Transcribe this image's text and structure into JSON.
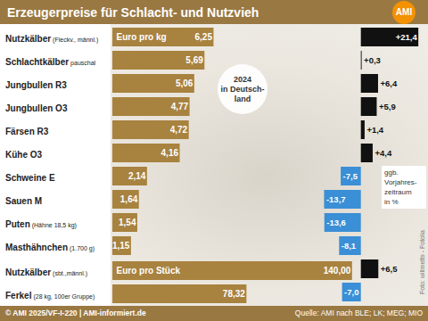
{
  "title": "Erzeugerpreise für Schlacht- und Nutzvieh",
  "logo": "AMI",
  "badge": [
    "2024",
    "in Deutsch-",
    "land"
  ],
  "footer_left": "© AMI 2025/VF-I-220 | AMI-informiert.de",
  "footer_right": "Quelle: AMI nach BLE; LK; MEG; MIO",
  "photo_credit": "Foto: willmetts - Fotolia",
  "chart_data": [
    {
      "type": "bar",
      "orientation": "horizontal",
      "title": "Euro pro kg",
      "categories": [
        "Nutzkälber",
        "Schlachtkälber",
        "Jungbullen R3",
        "Jungbullen O3",
        "Färsen R3",
        "Kühe O3",
        "Schweine E",
        "Sauen M",
        "Puten",
        "Masthähnchen"
      ],
      "category_notes": [
        "(Fleckv., männl.)",
        "pauschal",
        null,
        null,
        null,
        null,
        null,
        null,
        "(Hähne 18,5 kg)",
        "(1.700 g)"
      ],
      "values": [
        6.25,
        5.69,
        5.06,
        4.77,
        4.72,
        4.16,
        2.14,
        1.64,
        1.54,
        1.15
      ],
      "value_labels": [
        "6,25",
        "5,69",
        "5,06",
        "4,77",
        "4,72",
        "4,16",
        "2,14",
        "1,64",
        "1,54",
        "1,15"
      ],
      "color": "#a8823f",
      "xlim": [
        0,
        6.5
      ],
      "data_labels": true,
      "tick_labels": "y"
    },
    {
      "type": "bar",
      "orientation": "horizontal",
      "title": "Euro pro Stück",
      "categories": [
        "Nutzkälber",
        "Ferkel"
      ],
      "category_notes": [
        "(sbt.,männl.)",
        "(28 kg, 100er Gruppe)"
      ],
      "values": [
        140,
        78.32
      ],
      "value_labels": [
        "140,00",
        "78,32"
      ],
      "color": "#a8823f",
      "xlim": [
        0,
        150
      ],
      "data_labels": true,
      "tick_labels": "y"
    },
    {
      "type": "bar",
      "orientation": "horizontal",
      "title": [
        "ggb.",
        "Vorjahres-",
        "zeitraum",
        "in %"
      ],
      "values": [
        21.4,
        0.3,
        6.4,
        5.9,
        1.4,
        4.4,
        -7.5,
        -13.7,
        -13.6,
        -8.1,
        6.5,
        -7.0
      ],
      "value_labels": [
        "+21,4",
        "+0,3",
        "+6,4",
        "+5,9",
        "+1,4",
        "+4,4",
        "-7,5",
        "-13,7",
        "-13,6",
        "-8,1",
        "+6,5",
        "-7,0"
      ],
      "colors": [
        "#111111",
        "#111111",
        "#111111",
        "#111111",
        "#111111",
        "#111111",
        "#3a8fd6",
        "#3a8fd6",
        "#3a8fd6",
        "#3a8fd6",
        "#111111",
        "#3a8fd6"
      ],
      "xlim": [
        -16.5,
        25
      ],
      "data_labels": true,
      "tick_labels": false
    }
  ]
}
